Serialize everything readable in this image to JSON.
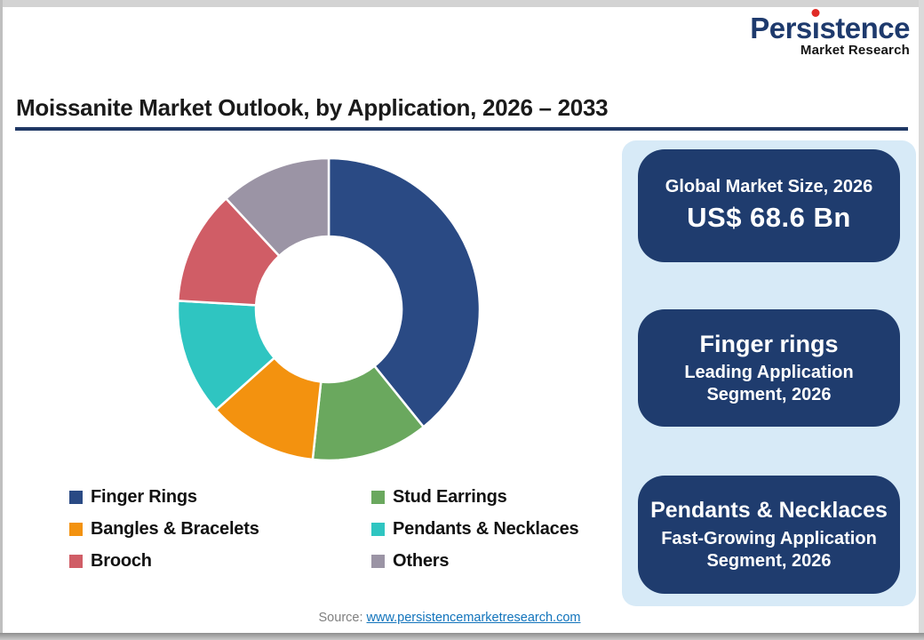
{
  "logo": {
    "name": "Persistence",
    "name_parts": {
      "pre": "Pers",
      "i_dotless": "ı",
      "post": "stence"
    },
    "tagline": "Market Research",
    "brand_color": "#1e3a6d",
    "dot_color": "#e02b27"
  },
  "title": {
    "text": "Moissanite Market Outlook, by Application, 2026 – 2033",
    "underline_color": "#1f3864"
  },
  "chart_data": {
    "type": "pie",
    "subtype": "donut",
    "title": "Moissanite Market Outlook, by Application, 2026 – 2033",
    "start_angle_deg": 0,
    "direction": "clockwise",
    "inner_radius_ratio": 0.48,
    "legend_position": "bottom-left",
    "unit": "% share of market, 2026 (estimated from arc angles; no numeric labels shown)",
    "segments": [
      {
        "label": "Finger Rings",
        "value": 39.2,
        "color": "#2a4a84"
      },
      {
        "label": "Stud Earrings",
        "value": 12.5,
        "color": "#6aa85e"
      },
      {
        "label": "Bangles & Bracelets",
        "value": 11.7,
        "color": "#f3920f"
      },
      {
        "label": "Pendants & Necklaces",
        "value": 12.5,
        "color": "#2fc5c1"
      },
      {
        "label": "Brooch",
        "value": 12.2,
        "color": "#d05d66"
      },
      {
        "label": "Others",
        "value": 11.9,
        "color": "#9b94a5"
      }
    ]
  },
  "side_panel": {
    "bg_color": "#d7eaf7",
    "card_color": "#1f3c6e",
    "cards": [
      {
        "line1": "Global Market Size, 2026",
        "line2": "US$ 68.6 Bn"
      },
      {
        "line1": "Finger rings",
        "line2": "Leading Application Segment, 2026"
      },
      {
        "line1": "Pendants & Necklaces",
        "line2": "Fast-Growing Application Segment, 2026"
      }
    ]
  },
  "footer": {
    "source_label": "Source:",
    "source_link": "www.persistencemarketresearch.com",
    "link_color": "#1274bc"
  }
}
